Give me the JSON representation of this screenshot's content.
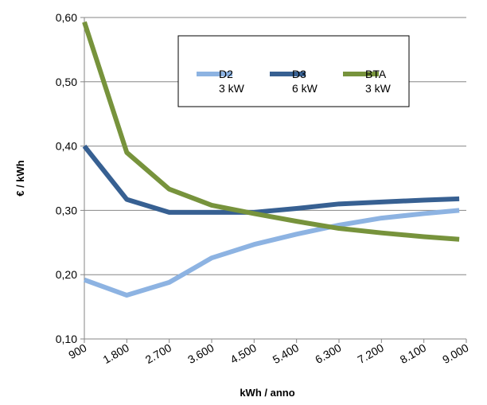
{
  "chart_data": {
    "type": "line",
    "x_label": "kWh / anno",
    "y_label": "€ / kWh",
    "x": [
      900,
      1800,
      2700,
      3600,
      4500,
      5400,
      6300,
      7200,
      8100,
      8850
    ],
    "series": [
      {
        "name": "D2\n3 kW",
        "color": "#8db3e2",
        "values": [
          0.192,
          0.168,
          0.188,
          0.226,
          0.247,
          0.263,
          0.277,
          0.288,
          0.295,
          0.3
        ]
      },
      {
        "name": "D3\n6 kW",
        "color": "#376092",
        "values": [
          0.4,
          0.317,
          0.297,
          0.297,
          0.297,
          0.303,
          0.31,
          0.313,
          0.316,
          0.318
        ]
      },
      {
        "name": "BTA\n3 kW",
        "color": "#77933c",
        "values": [
          0.593,
          0.39,
          0.333,
          0.308,
          0.295,
          0.283,
          0.272,
          0.265,
          0.259,
          0.255
        ]
      }
    ],
    "xlim": [
      900,
      9000
    ],
    "xticks": [
      900,
      {
        "value": 1800,
        "label": "1.800"
      },
      {
        "value": 2700,
        "label": "2.700"
      },
      {
        "value": 3600,
        "label": "3.600"
      },
      {
        "value": 4500,
        "label": "4.500"
      },
      {
        "value": 5400,
        "label": "5.400"
      },
      {
        "value": 6300,
        "label": "6.300"
      },
      {
        "value": 7200,
        "label": "7.200"
      },
      {
        "value": 8100,
        "label": "8.100"
      },
      {
        "value": 9000,
        "label": "9.000"
      }
    ],
    "ylim": [
      0.1,
      0.6
    ],
    "yticks": [
      {
        "value": 0.1,
        "label": "0,10"
      },
      {
        "value": 0.2,
        "label": "0,20"
      },
      {
        "value": 0.3,
        "label": "0,30"
      },
      {
        "value": 0.4,
        "label": "0,40"
      },
      {
        "value": 0.5,
        "label": "0,50"
      },
      {
        "value": 0.6,
        "label": "0,60"
      }
    ],
    "grid": true
  }
}
